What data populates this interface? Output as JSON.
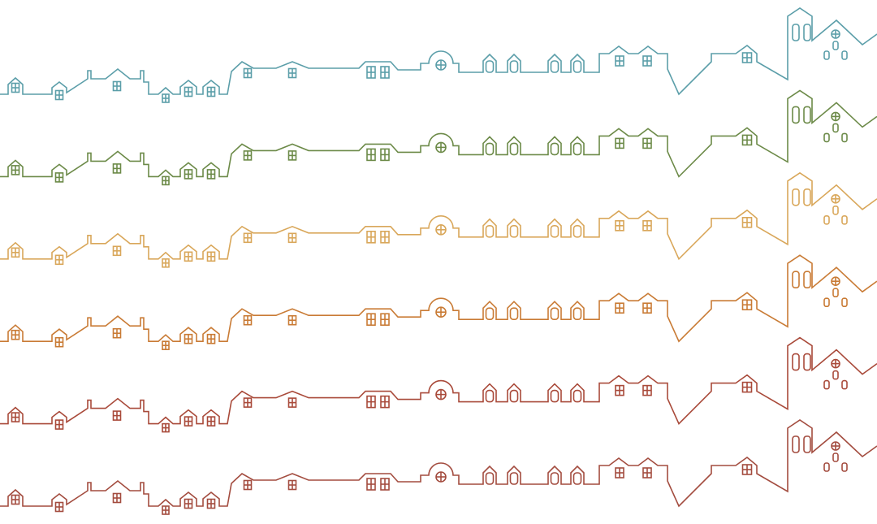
{
  "rows": [
    {
      "color": "#5b9ea9"
    },
    {
      "color": "#6c8a48"
    },
    {
      "color": "#d9a75a"
    },
    {
      "color": "#c97b35"
    },
    {
      "color": "#a94a3a"
    },
    {
      "color": "#a34c3f"
    }
  ]
}
